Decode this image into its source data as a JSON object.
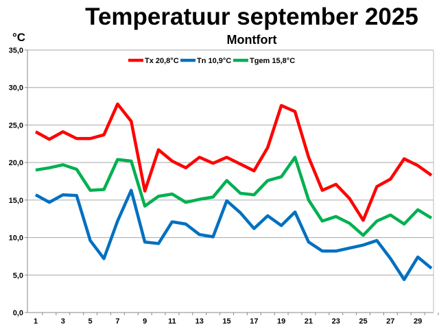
{
  "chart_data": {
    "type": "line",
    "title": "Temperatuur september 2025",
    "subtitle": "Montfort",
    "ylabel": "°C",
    "xlabel": "",
    "ylim": [
      0,
      35
    ],
    "yticks": [
      "0,0",
      "5,0",
      "10,0",
      "15,0",
      "20,0",
      "25,0",
      "30,0",
      "35,0"
    ],
    "xticks": [
      "1",
      "3",
      "5",
      "7",
      "9",
      "11",
      "13",
      "15",
      "17",
      "19",
      "21",
      "23",
      "25",
      "27",
      "29"
    ],
    "x": [
      1,
      2,
      3,
      4,
      5,
      6,
      7,
      8,
      9,
      10,
      11,
      12,
      13,
      14,
      15,
      16,
      17,
      18,
      19,
      20,
      21,
      22,
      23,
      24,
      25,
      26,
      27,
      28,
      29,
      30
    ],
    "grid": true,
    "legend_position": "top",
    "series": [
      {
        "name": "Tx 20,8°C",
        "color": "#ff0000",
        "values": [
          24.1,
          23.1,
          24.1,
          23.2,
          23.2,
          23.7,
          27.8,
          25.5,
          16.2,
          21.7,
          20.2,
          19.3,
          20.7,
          19.9,
          20.7,
          19.8,
          18.9,
          22.0,
          27.6,
          26.8,
          20.7,
          16.3,
          17.1,
          15.2,
          12.3,
          16.8,
          17.8,
          20.5,
          19.6,
          18.3
        ]
      },
      {
        "name": "Tn 10,9°C",
        "color": "#0070c0",
        "values": [
          15.7,
          14.7,
          15.7,
          15.6,
          9.6,
          7.2,
          12.2,
          16.3,
          9.4,
          9.2,
          12.1,
          11.8,
          10.4,
          10.1,
          14.9,
          13.3,
          11.2,
          12.9,
          11.6,
          13.4,
          9.4,
          8.2,
          8.2,
          8.6,
          9.0,
          9.6,
          7.2,
          4.4,
          7.4,
          5.9
        ]
      },
      {
        "name": "Tgem 15,8°C",
        "color": "#00b050",
        "values": [
          19.0,
          19.3,
          19.7,
          19.1,
          16.3,
          16.4,
          20.4,
          20.2,
          14.2,
          15.5,
          15.8,
          14.7,
          15.1,
          15.4,
          17.6,
          15.9,
          15.7,
          17.6,
          18.1,
          20.7,
          15.0,
          12.2,
          12.8,
          11.9,
          10.3,
          12.2,
          13.0,
          11.8,
          13.7,
          12.6
        ]
      }
    ]
  }
}
